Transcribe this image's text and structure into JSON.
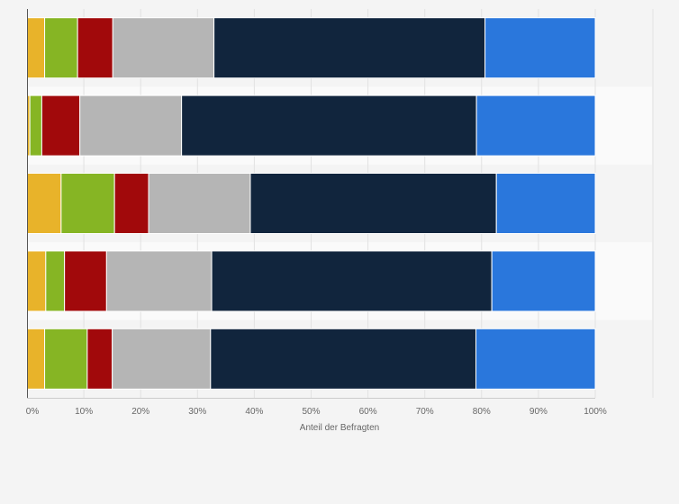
{
  "chart_data": {
    "type": "bar",
    "orientation": "horizontal",
    "stacked": true,
    "categories": [
      "",
      "",
      "",
      "",
      ""
    ],
    "xlabel": "Anteil der Befragten",
    "ylabel": "",
    "xlim": [
      0,
      100
    ],
    "x_ticks": [
      0,
      10,
      20,
      30,
      40,
      50,
      60,
      70,
      80,
      90,
      100
    ],
    "x_tick_labels": [
      "0%",
      "10%",
      "20%",
      "30%",
      "40%",
      "50%",
      "60%",
      "70%",
      "80%",
      "90%",
      "100%"
    ],
    "grid": true,
    "legend": "none",
    "series": [
      {
        "color": "#e8b32a",
        "values": [
          3.1,
          0.5,
          6.0,
          3.3,
          3.1
        ]
      },
      {
        "color": "#86b524",
        "values": [
          5.8,
          2.1,
          9.4,
          3.3,
          7.5
        ]
      },
      {
        "color": "#a1090b",
        "values": [
          6.2,
          6.7,
          6.0,
          7.4,
          4.4
        ]
      },
      {
        "color": "#b5b5b5",
        "values": [
          17.8,
          17.9,
          17.9,
          18.5,
          17.3
        ]
      },
      {
        "color": "#11253d",
        "values": [
          47.7,
          51.9,
          43.3,
          49.3,
          46.7
        ]
      },
      {
        "color": "#2a77dc",
        "values": [
          19.4,
          20.9,
          17.4,
          18.2,
          21.0
        ]
      }
    ]
  }
}
